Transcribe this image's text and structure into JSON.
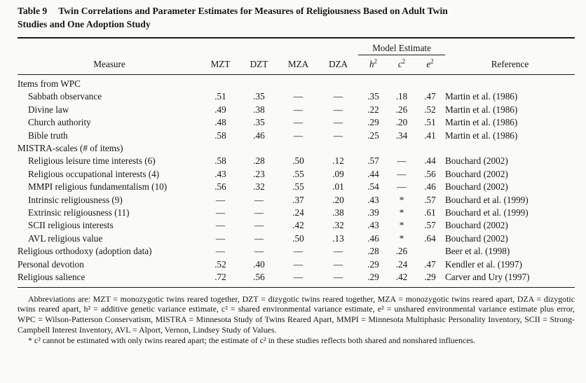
{
  "title": {
    "label": "Table 9",
    "caption": "Twin Correlations and Parameter Estimates for Measures of Religiousness Based on Adult Twin Studies and One Adoption Study"
  },
  "table": {
    "model_estimate": "Model Estimate",
    "columns": {
      "measure": "Measure",
      "mzt": "MZT",
      "dzt": "DZT",
      "mza": "MZA",
      "dza": "DZA",
      "h2": {
        "base": "h",
        "sup": "2"
      },
      "c2": {
        "base": "c",
        "sup": "2"
      },
      "e2": {
        "base": "e",
        "sup": "2"
      },
      "reference": "Reference"
    },
    "rows": [
      {
        "measure": "Items from WPC",
        "indent": false,
        "values": [
          "",
          "",
          "",
          "",
          "",
          "",
          ""
        ],
        "reference": ""
      },
      {
        "measure": "Sabbath observance",
        "indent": true,
        "values": [
          ".51",
          ".35",
          "—",
          "—",
          ".35",
          ".18",
          ".47"
        ],
        "reference": "Martin et al. (1986)"
      },
      {
        "measure": "Divine law",
        "indent": true,
        "values": [
          ".49",
          ".38",
          "—",
          "—",
          ".22",
          ".26",
          ".52"
        ],
        "reference": "Martin et al. (1986)"
      },
      {
        "measure": "Church authority",
        "indent": true,
        "values": [
          ".48",
          ".35",
          "—",
          "—",
          ".29",
          ".20",
          ".51"
        ],
        "reference": "Martin et al. (1986)"
      },
      {
        "measure": "Bible truth",
        "indent": true,
        "values": [
          ".58",
          ".46",
          "—",
          "—",
          ".25",
          ".34",
          ".41"
        ],
        "reference": "Martin et al. (1986)"
      },
      {
        "measure": "MISTRA-scales (# of items)",
        "indent": false,
        "values": [
          "",
          "",
          "",
          "",
          "",
          "",
          ""
        ],
        "reference": ""
      },
      {
        "measure": "Religious leisure time interests (6)",
        "indent": true,
        "values": [
          ".58",
          ".28",
          ".50",
          ".12",
          ".57",
          "—",
          ".44"
        ],
        "reference": "Bouchard (2002)"
      },
      {
        "measure": "Religious occupational interests (4)",
        "indent": true,
        "values": [
          ".43",
          ".23",
          ".55",
          ".09",
          ".44",
          "—",
          ".56"
        ],
        "reference": "Bouchard (2002)"
      },
      {
        "measure": "MMPI religious fundamentalism (10)",
        "indent": true,
        "values": [
          ".56",
          ".32",
          ".55",
          ".01",
          ".54",
          "—",
          ".46"
        ],
        "reference": "Bouchard (2002)"
      },
      {
        "measure": "Intrinsic religiousness (9)",
        "indent": true,
        "values": [
          "—",
          "—",
          ".37",
          ".20",
          ".43",
          "*",
          ".57"
        ],
        "reference": "Bouchard et al. (1999)"
      },
      {
        "measure": "Extrinsic religiousness (11)",
        "indent": true,
        "values": [
          "—",
          "—",
          ".24",
          ".38",
          ".39",
          "*",
          ".61"
        ],
        "reference": "Bouchard et al. (1999)"
      },
      {
        "measure": "SCII religious interests",
        "indent": true,
        "values": [
          "—",
          "—",
          ".42",
          ".32",
          ".43",
          "*",
          ".57"
        ],
        "reference": "Bouchard (2002)"
      },
      {
        "measure": "AVL religious value",
        "indent": true,
        "values": [
          "—",
          "—",
          ".50",
          ".13",
          ".46",
          "*",
          ".64"
        ],
        "reference": "Bouchard (2002)"
      },
      {
        "measure": "Religious orthodoxy (adoption data)",
        "indent": false,
        "values": [
          "—",
          "—",
          "—",
          "—",
          ".28",
          ".26",
          ""
        ],
        "reference": "Beer et al. (1998)"
      },
      {
        "measure": "Personal devotion",
        "indent": false,
        "values": [
          ".52",
          ".40",
          "—",
          "—",
          ".29",
          ".24",
          ".47"
        ],
        "reference": "Kendler et al. (1997)"
      },
      {
        "measure": "Religious salience",
        "indent": false,
        "values": [
          ".72",
          ".56",
          "—",
          "—",
          ".29",
          ".42",
          ".29"
        ],
        "reference": "Carver and Ury (1997)"
      }
    ]
  },
  "footnotes": {
    "abbreviations": "Abbreviations are: MZT = monozygotic twins reared together, DZT = dizygotic twins reared together, MZA = monozygotic twins reared apart, DZA = dizygotic twins reared apart, h² = additive genetic variance estimate, c² = shared environmental variance estimate, e² = unshared environmental variance estimate plus error, WPC = Wilson-Patterson Conservatism, MISTRA = Minnesota Study of Twins Reared Apart, MMPI = Minnesota Multiphasic Personality Inventory, SCII = Strong-Campbell Interest Inventory, AVL = Alport, Vernon, Lindsey Study of Values.",
    "asterisk": "* c² cannot be estimated with only twins reared apart; the estimate of c² in these studies reflects both shared and nonshared influences."
  }
}
